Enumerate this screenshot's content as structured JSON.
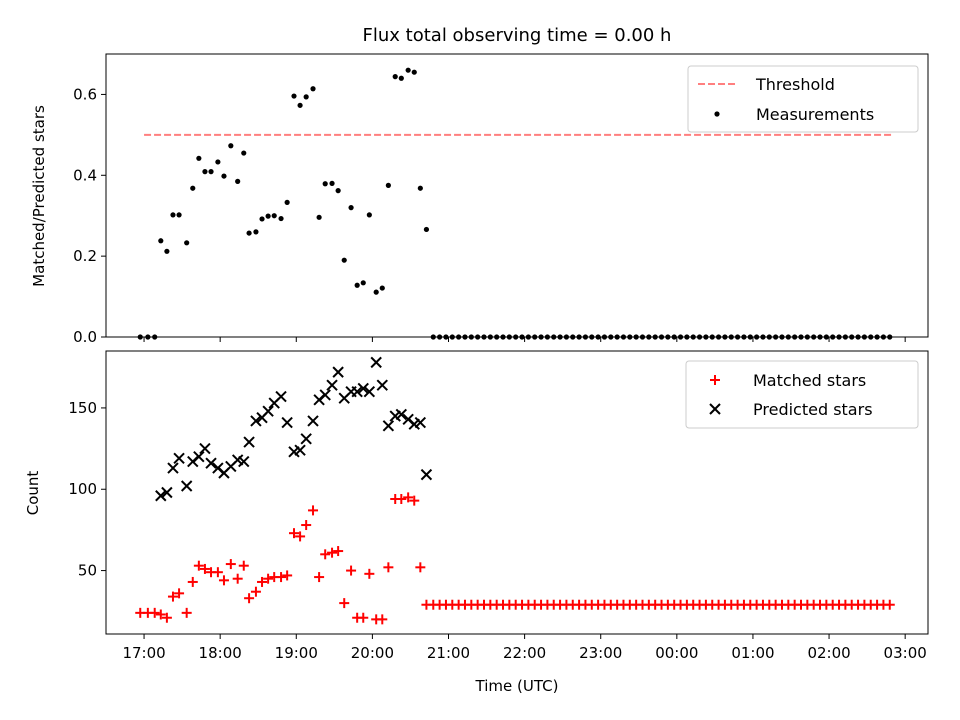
{
  "chart_data": {
    "type": "scatter",
    "title": "Flux total observing time = 0.00 h",
    "xlabel": "Time (UTC)",
    "x_ticks": [
      "17:00",
      "18:00",
      "19:00",
      "20:00",
      "21:00",
      "22:00",
      "23:00",
      "00:00",
      "01:00",
      "02:00",
      "03:00"
    ],
    "x_range_hours": [
      16.5,
      27.3
    ],
    "panels": [
      {
        "name": "ratio",
        "ylabel": "Matched/Predicted stars",
        "ylim": [
          0,
          0.7
        ],
        "y_ticks": [
          0.0,
          0.2,
          0.4,
          0.6
        ],
        "y_tick_labels": [
          "0.0",
          "0.2",
          "0.4",
          "0.6"
        ],
        "legend": {
          "position": "upper right",
          "entries": [
            "Threshold",
            "Measurements"
          ]
        },
        "threshold": {
          "name": "Threshold",
          "value": 0.5,
          "x_range_hours": [
            17.0,
            26.85
          ],
          "color": "#ff7f7f"
        },
        "measurements": {
          "name": "Measurements",
          "color": "#000000",
          "x_hours": [
            16.95,
            17.05,
            17.14,
            17.22,
            17.3,
            17.38,
            17.46,
            17.56,
            17.64,
            17.72,
            17.8,
            17.88,
            17.97,
            18.05,
            18.14,
            18.23,
            18.31,
            18.38,
            18.47,
            18.55,
            18.63,
            18.71,
            18.8,
            18.88,
            18.97,
            19.05,
            19.13,
            19.22,
            19.3,
            19.38,
            19.47,
            19.55,
            19.63,
            19.72,
            19.8,
            19.88,
            19.96,
            20.05,
            20.13,
            20.21,
            20.3,
            20.38,
            20.47,
            20.55,
            20.63,
            20.71
          ],
          "y": [
            0.0,
            0.0,
            0.0,
            0.238,
            0.212,
            0.302,
            0.302,
            0.233,
            0.368,
            0.442,
            0.409,
            0.409,
            0.433,
            0.398,
            0.473,
            0.385,
            0.455,
            0.257,
            0.26,
            0.292,
            0.299,
            0.3,
            0.293,
            0.333,
            0.596,
            0.573,
            0.594,
            0.614,
            0.296,
            0.379,
            0.38,
            0.362,
            0.19,
            0.32,
            0.128,
            0.134,
            0.302,
            0.111,
            0.121,
            0.375,
            0.644,
            0.64,
            0.66,
            0.655,
            0.368,
            0.266
          ]
        },
        "zero_series": {
          "x_start_hours": 20.8,
          "x_end_hours": 26.85,
          "x_step_hours": 0.0833,
          "y": 0.0
        }
      },
      {
        "name": "count",
        "ylabel": "Count",
        "ylim": [
          11,
          185
        ],
        "y_ticks": [
          50,
          100,
          150
        ],
        "y_tick_labels": [
          "50",
          "100",
          "150"
        ],
        "legend": {
          "position": "upper right",
          "entries": [
            "Matched stars",
            "Predicted stars"
          ]
        },
        "series": [
          {
            "name": "Matched stars",
            "marker": "+",
            "color": "#ff0000",
            "x_hours": [
              16.95,
              17.05,
              17.14,
              17.22,
              17.3,
              17.38,
              17.46,
              17.56,
              17.64,
              17.72,
              17.8,
              17.88,
              17.97,
              18.05,
              18.14,
              18.23,
              18.31,
              18.38,
              18.47,
              18.55,
              18.63,
              18.71,
              18.8,
              18.88,
              18.97,
              19.05,
              19.13,
              19.22,
              19.3,
              19.38,
              19.47,
              19.55,
              19.63,
              19.72,
              19.8,
              19.88,
              19.96,
              20.05,
              20.13,
              20.21,
              20.3,
              20.38,
              20.47,
              20.55,
              20.63,
              20.71
            ],
            "y": [
              24,
              24,
              24,
              23,
              21,
              34,
              36,
              24,
              43,
              53,
              51,
              49,
              49,
              44,
              54,
              45,
              53,
              33,
              37,
              43,
              45,
              46,
              46,
              47,
              73,
              71,
              78,
              87,
              46,
              60,
              61,
              62,
              30,
              50,
              21,
              21,
              48,
              20,
              20,
              52,
              94,
              94,
              95,
              93,
              52,
              29
            ]
          },
          {
            "name": "Predicted stars",
            "marker": "x",
            "color": "#000000",
            "x_hours": [
              17.22,
              17.3,
              17.38,
              17.46,
              17.56,
              17.64,
              17.72,
              17.8,
              17.88,
              17.97,
              18.05,
              18.14,
              18.23,
              18.31,
              18.38,
              18.47,
              18.55,
              18.63,
              18.71,
              18.8,
              18.88,
              18.97,
              19.05,
              19.13,
              19.22,
              19.3,
              19.38,
              19.47,
              19.55,
              19.63,
              19.72,
              19.8,
              19.88,
              19.96,
              20.05,
              20.13,
              20.21,
              20.3,
              20.38,
              20.47,
              20.55,
              20.63,
              20.71
            ],
            "y": [
              96,
              98,
              113,
              119,
              102,
              117,
              120,
              125,
              116,
              113,
              110,
              114,
              118,
              117,
              129,
              142,
              144,
              148,
              153,
              157,
              141,
              123,
              124,
              131,
              142,
              155,
              158,
              164,
              172,
              156,
              160,
              160,
              162,
              160,
              178,
              164,
              139,
              145,
              146,
              143,
              140,
              141,
              109
            ]
          },
          {
            "name": "Matched stars (flat)",
            "marker": "+",
            "color": "#ff0000",
            "x_start_hours": 20.8,
            "x_end_hours": 26.85,
            "x_step_hours": 0.0833,
            "y": 29
          }
        ]
      }
    ]
  }
}
